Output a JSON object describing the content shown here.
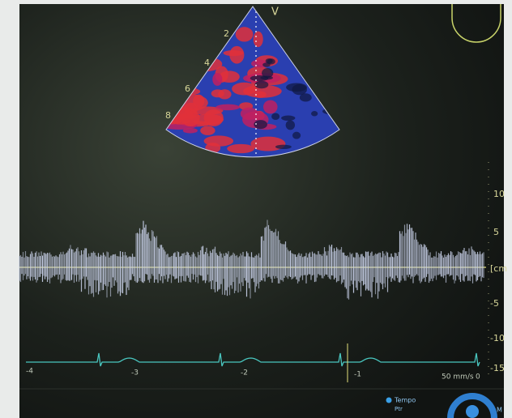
{
  "sector": {
    "orientation": "V",
    "depth_labels": [
      "2",
      "4",
      "6",
      "8"
    ]
  },
  "velocity_scale": {
    "labels": [
      "10",
      "5",
      "[cm",
      "-5",
      "-10",
      "-15"
    ]
  },
  "ecg": {
    "time_labels": [
      "-4",
      "-3",
      "-2",
      "-1",
      "0"
    ],
    "sweep_speed": "50 mm/s"
  },
  "controls": {
    "mode": "Tempo",
    "sub": "Ptr",
    "edge": "M"
  }
}
